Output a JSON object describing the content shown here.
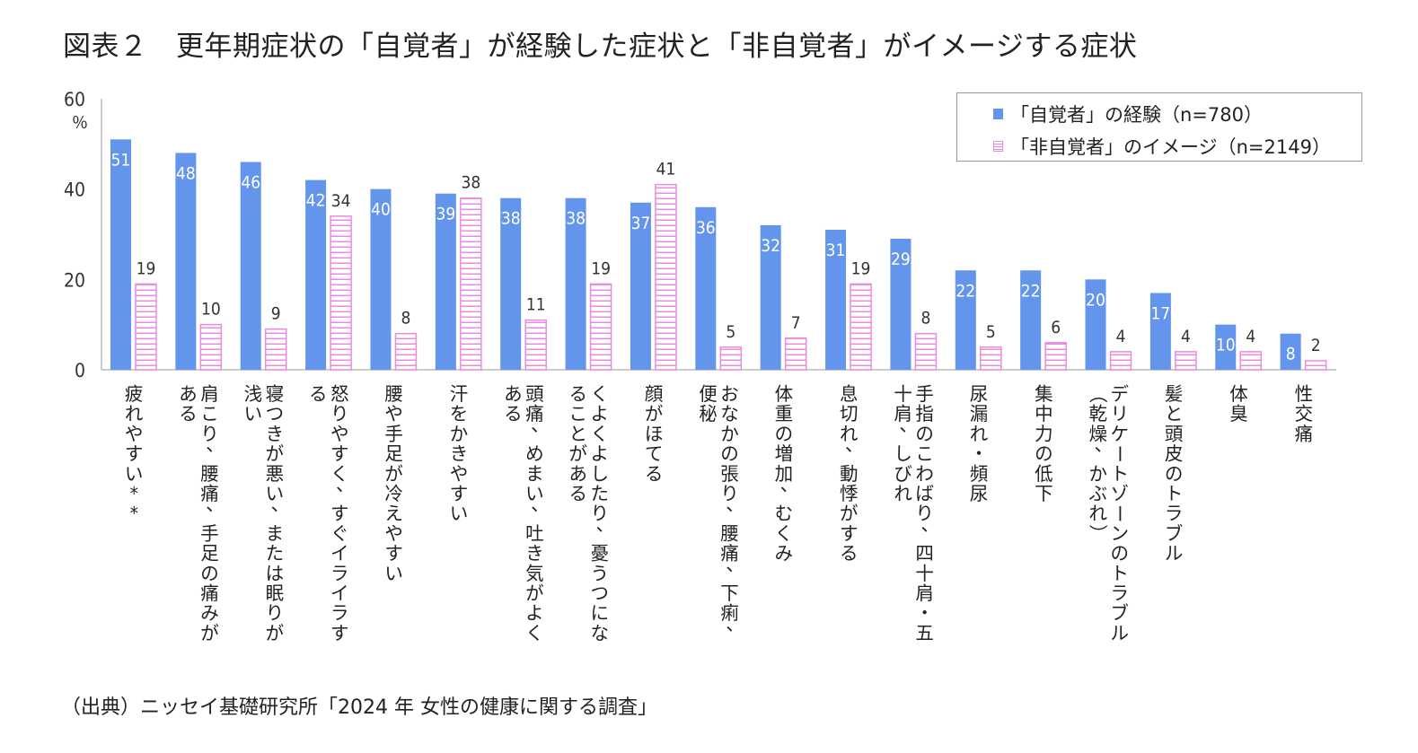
{
  "title": "図表２　更年期症状の「自覚者」が経験した症状と「非自覚者」がイメージする症状",
  "source": "（出典）ニッセイ基礎研究所「2024 年 女性の健康に関する調査」",
  "colors": {
    "experience": "#6495ed",
    "image": "#e98ce0"
  },
  "chart_data": {
    "type": "bar",
    "ylabel": "％",
    "ylim": [
      0,
      60
    ],
    "yticks": [
      0,
      20,
      40,
      60
    ],
    "legend_position": "top-right",
    "categories": [
      "疲れやすい**",
      "肩こり、腰痛、手足の痛みがある",
      "寝つきが悪い、または眠りが浅い",
      "怒りやすく、すぐイライラする",
      "腰や手足が冷えやすい",
      "汗をかきやすい",
      "頭痛、めまい、吐き気がよくある",
      "くよくよしたり、憂うつになることがある",
      "顔がほてる",
      "おなかの張り、腰痛、下痢、便秘",
      "体重の増加、むくみ",
      "息切れ、動悸がする",
      "手指のこわばり、四十肩・五十肩、しびれ",
      "尿漏れ・頻尿",
      "集中力の低下",
      "デリケートゾーンのトラブル（乾燥、かぶれ）",
      "髪と頭皮のトラブル",
      "体臭",
      "性交痛"
    ],
    "category_lines": [
      [
        "疲れやすい**"
      ],
      [
        "肩こり、腰痛、手足の痛みが",
        "ある"
      ],
      [
        "寝つきが悪い、または眠りが",
        "浅い"
      ],
      [
        "怒りやすく、すぐイライラす",
        "る"
      ],
      [
        "腰や手足が冷えやすい"
      ],
      [
        "汗をかきやすい"
      ],
      [
        "頭痛、めまい、吐き気がよく",
        "ある"
      ],
      [
        "くよくよしたり、憂うつにな",
        "ることがある"
      ],
      [
        "顔がほてる"
      ],
      [
        "おなかの張り、腰痛、下痢、",
        "便秘"
      ],
      [
        "体重の増加、むくみ"
      ],
      [
        "息切れ、動悸がする"
      ],
      [
        "手指のこわばり、四十肩・五",
        "十肩、しびれ"
      ],
      [
        "尿漏れ・頻尿"
      ],
      [
        "集中力の低下"
      ],
      [
        "デリケートゾーンのトラブル",
        "（乾燥、かぶれ）"
      ],
      [
        "髪と頭皮のトラブル"
      ],
      [
        "体臭"
      ],
      [
        "性交痛"
      ]
    ],
    "series": [
      {
        "name": "「自覚者」の経験（n=780）",
        "values": [
          51,
          48,
          46,
          42,
          40,
          39,
          38,
          38,
          37,
          36,
          32,
          31,
          29,
          22,
          22,
          20,
          17,
          10,
          8
        ]
      },
      {
        "name": "「非自覚者」のイメージ（n=2149）",
        "values": [
          19,
          10,
          9,
          34,
          8,
          38,
          11,
          19,
          41,
          5,
          7,
          19,
          8,
          5,
          6,
          4,
          4,
          4,
          2
        ]
      }
    ]
  }
}
